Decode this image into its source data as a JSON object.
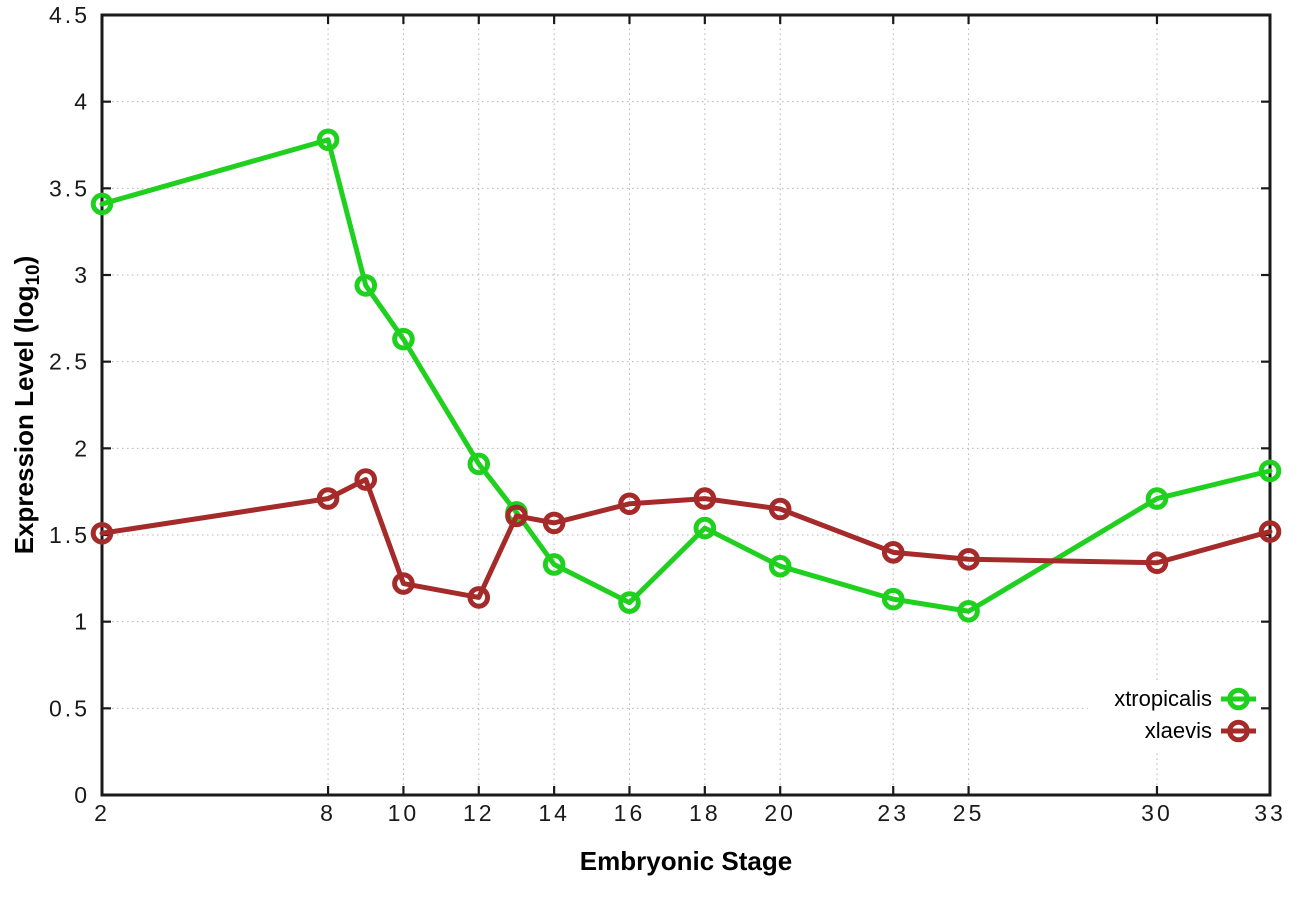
{
  "chart_data": {
    "type": "line",
    "title": "",
    "xlabel": "Embryonic Stage",
    "ylabel": "Expression Level (log10)",
    "ylabel_parts": {
      "pre": "Expression Level (log",
      "sub": "10",
      "post": ")"
    },
    "x": [
      2,
      8,
      9,
      10,
      12,
      13,
      14,
      16,
      18,
      20,
      23,
      25,
      30,
      33
    ],
    "series": [
      {
        "name": "xtropicalis",
        "color": "#1fd01f",
        "values": [
          3.41,
          3.78,
          2.94,
          2.63,
          1.91,
          1.63,
          1.33,
          1.11,
          1.54,
          1.32,
          1.13,
          1.06,
          1.71,
          1.87
        ]
      },
      {
        "name": "xlaevis",
        "color": "#a52a2a",
        "values": [
          1.51,
          1.71,
          1.82,
          1.22,
          1.14,
          1.61,
          1.57,
          1.68,
          1.71,
          1.65,
          1.4,
          1.36,
          1.34,
          1.52
        ]
      }
    ],
    "xticks": [
      2,
      8,
      10,
      12,
      14,
      16,
      18,
      20,
      23,
      25,
      30,
      33
    ],
    "yticks": [
      0,
      0.5,
      1,
      1.5,
      2,
      2.5,
      3,
      3.5,
      4,
      4.5
    ],
    "xlim": [
      2,
      33
    ],
    "ylim": [
      0,
      4.5
    ],
    "grid": true,
    "legend_position": "bottom-right",
    "marker": "open-circle",
    "axis_color": "#1a1a1a",
    "grid_color": "#b8b8b8",
    "tick_label_color": "#1a1a1a",
    "background": "#ffffff"
  }
}
